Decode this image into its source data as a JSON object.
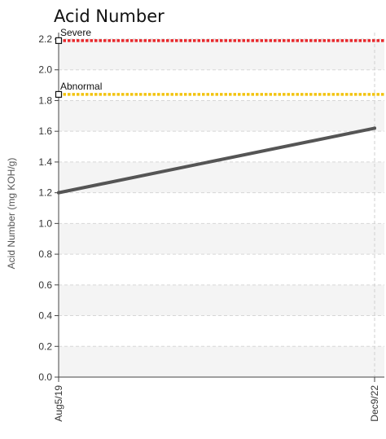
{
  "chart_data": {
    "type": "line",
    "title": "Acid Number",
    "xlabel": "",
    "ylabel": "Acid Number (mg KOH/g)",
    "ylim": [
      0,
      2.2
    ],
    "y_ticks": [
      "0.0",
      "0.2",
      "0.4",
      "0.6",
      "0.8",
      "1.0",
      "1.2",
      "1.4",
      "1.6",
      "1.8",
      "2.0",
      "2.2"
    ],
    "categories": [
      "Aug5/19",
      "Dec9/22"
    ],
    "series": [
      {
        "values": [
          1.2,
          1.62
        ],
        "color": "#555555"
      }
    ],
    "reference_lines": [
      {
        "name": "Severe",
        "value": 2.19,
        "color": "#e8272b"
      },
      {
        "name": "Abnormal",
        "value": 1.84,
        "color": "#f2c40f"
      }
    ],
    "grid": true,
    "legend": "none"
  }
}
